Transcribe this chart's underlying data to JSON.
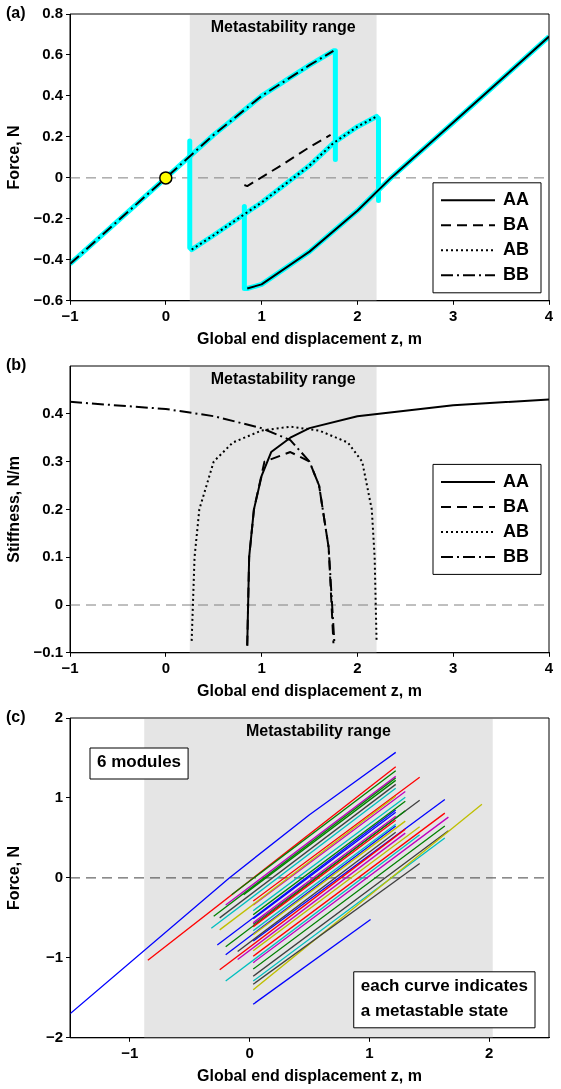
{
  "chart_data": [
    {
      "type": "line",
      "xlabel": "Global end displacement z, m",
      "ylabel": "Force, N",
      "annotations": [
        "(a)"
      ],
      "xlim": [
        -1,
        4
      ],
      "xticks": [
        -1,
        0,
        1,
        2,
        3,
        4
      ],
      "ylim": [
        -0.6,
        0.8
      ],
      "yticks": [
        -0.6,
        -0.4,
        -0.2,
        0,
        0.2,
        0.4,
        0.6,
        0.8
      ],
      "grid": false,
      "legend": "bottom right",
      "marker": "none",
      "bands": [
        {
          "axis": "x",
          "from": 0.25,
          "to": 2.2,
          "label": "Metastability range",
          "color": "#e5e5e5"
        }
      ],
      "ref_lines": [
        {
          "axis": "y",
          "value": 0,
          "color": "#808080",
          "line_style": "dashed"
        }
      ],
      "series": [
        {
          "color": "#00ffff",
          "x": [
            -1,
            0,
            0.5,
            1,
            1.5,
            1.75,
            1.77,
            1.77
          ],
          "values": [
            -0.42,
            0,
            0.21,
            0.4,
            0.55,
            0.62,
            0.62,
            0.09
          ]
        },
        {
          "color": "#00ffff",
          "x": [
            0.25,
            0.25,
            0.27,
            0.5,
            1,
            1.5,
            1.75,
            2,
            2.2,
            2.22,
            2.22
          ],
          "values": [
            0.18,
            -0.34,
            -0.35,
            -0.28,
            -0.12,
            0.06,
            0.17,
            0.25,
            0.3,
            0.29,
            -0.11
          ]
        },
        {
          "color": "#00ffff",
          "x": [
            0.82,
            0.82,
            0.85,
            1,
            1.5,
            2,
            2.35,
            3,
            4
          ],
          "values": [
            -0.14,
            -0.54,
            -0.54,
            -0.52,
            -0.36,
            -0.16,
            0,
            0.27,
            0.69
          ]
        },
        {
          "name": "AA",
          "color": "#000000",
          "line_style": "solid",
          "x": [
            0.85,
            1,
            1.5,
            2,
            2.35,
            3,
            4
          ],
          "values": [
            -0.54,
            -0.52,
            -0.36,
            -0.16,
            0,
            0.27,
            0.69
          ]
        },
        {
          "name": "BA",
          "color": "#000000",
          "line_style": "dashed",
          "x": [
            0.82,
            0.85,
            1.2,
            1.5,
            1.72
          ],
          "values": [
            -0.035,
            -0.04,
            0.06,
            0.15,
            0.21
          ]
        },
        {
          "name": "AB",
          "color": "#000000",
          "line_style": "dotted",
          "x": [
            0.27,
            0.5,
            1,
            1.5,
            1.75,
            2,
            2.2
          ],
          "values": [
            -0.35,
            -0.28,
            -0.12,
            0.06,
            0.17,
            0.25,
            0.3
          ]
        },
        {
          "name": "BB",
          "color": "#000000",
          "line_style": "dashdot",
          "x": [
            -1,
            0,
            0.5,
            1,
            1.5,
            1.75
          ],
          "values": [
            -0.42,
            0,
            0.21,
            0.4,
            0.55,
            0.62
          ]
        },
        {
          "type": "scatter",
          "color": "#ffff00",
          "marker": "circle",
          "x": [
            0
          ],
          "values": [
            0
          ]
        }
      ]
    },
    {
      "type": "line",
      "xlabel": "Global end displacement z, m",
      "ylabel": "Stiffness, N/m",
      "annotations": [
        "(b)"
      ],
      "xlim": [
        -1,
        4
      ],
      "xticks": [
        -1,
        0,
        1,
        2,
        3,
        4
      ],
      "ylim": [
        -0.1,
        0.5
      ],
      "yticks": [
        -0.1,
        0,
        0.1,
        0.2,
        0.3,
        0.4
      ],
      "grid": false,
      "legend": "right",
      "marker": "none",
      "bands": [
        {
          "axis": "x",
          "from": 0.25,
          "to": 2.2,
          "label": "Metastability range",
          "color": "#e5e5e5"
        }
      ],
      "ref_lines": [
        {
          "axis": "y",
          "value": 0,
          "color": "#808080",
          "line_style": "dashed"
        }
      ],
      "series": [
        {
          "name": "AA",
          "color": "#000000",
          "line_style": "solid",
          "x": [
            0.85,
            0.87,
            0.92,
            1,
            1.1,
            1.3,
            1.5,
            2,
            3,
            4
          ],
          "values": [
            -0.085,
            0.1,
            0.2,
            0.27,
            0.32,
            0.35,
            0.37,
            0.395,
            0.418,
            0.43
          ]
        },
        {
          "name": "BA",
          "color": "#000000",
          "line_style": "dashed",
          "x": [
            0.85,
            0.87,
            0.92,
            1.03,
            1.3,
            1.5,
            1.6,
            1.7,
            1.75
          ],
          "values": [
            -0.085,
            0.1,
            0.2,
            0.3,
            0.32,
            0.3,
            0.25,
            0.12,
            -0.08
          ]
        },
        {
          "name": "AB",
          "color": "#000000",
          "line_style": "dotted",
          "x": [
            0.27,
            0.3,
            0.35,
            0.5,
            0.7,
            1,
            1.3,
            1.6,
            1.9,
            2.05,
            2.15,
            2.18,
            2.2
          ],
          "values": [
            -0.075,
            0.1,
            0.2,
            0.3,
            0.34,
            0.365,
            0.373,
            0.365,
            0.34,
            0.3,
            0.2,
            0.1,
            -0.075
          ]
        },
        {
          "name": "BB",
          "color": "#000000",
          "line_style": "dashdot",
          "x": [
            -1,
            0,
            0.5,
            1,
            1.3,
            1.5,
            1.6,
            1.7,
            1.76
          ],
          "values": [
            0.425,
            0.41,
            0.395,
            0.37,
            0.345,
            0.3,
            0.25,
            0.12,
            -0.08
          ]
        }
      ]
    },
    {
      "type": "line",
      "xlabel": "Global end displacement z, m",
      "ylabel": "Force, N",
      "annotations": [
        "(c)",
        "6 modules",
        "each curve indicates\na metastable state"
      ],
      "xlim": [
        -1.5,
        2.5
      ],
      "xticks": [
        -1,
        0,
        1,
        2
      ],
      "ylim": [
        -2,
        2
      ],
      "yticks": [
        -2,
        -1,
        0,
        1,
        2
      ],
      "grid": false,
      "marker": "none",
      "bands": [
        {
          "axis": "x",
          "from": -0.88,
          "to": 2.03,
          "label": "Metastability range",
          "color": "#e5e5e5"
        }
      ],
      "ref_lines": [
        {
          "axis": "y",
          "value": 0,
          "color": "#404040",
          "line_style": "dashed"
        }
      ],
      "series": [
        {
          "color": "#0000ff",
          "x": [
            -1.5,
            -0.17,
            0.5,
            1.22
          ],
          "values": [
            -1.7,
            0,
            0.79,
            1.57
          ]
        },
        {
          "color": "#ff0000",
          "x": [
            -0.85,
            1.22
          ],
          "values": [
            -1.03,
            1.39
          ]
        },
        {
          "color": "#008000",
          "x": [
            -0.15,
            1.22
          ],
          "values": [
            -0.21,
            1.34
          ]
        },
        {
          "color": "#bf00bf",
          "x": [
            -0.2,
            1.22
          ],
          "values": [
            -0.34,
            1.27
          ]
        },
        {
          "color": "#008000",
          "x": [
            -0.05,
            1.22
          ],
          "values": [
            -0.21,
            1.22
          ]
        },
        {
          "color": "#ff0000",
          "x": [
            0.03,
            1.42
          ],
          "values": [
            -0.29,
            1.26
          ]
        },
        {
          "color": "#bf00bf",
          "x": [
            0.03,
            1.3
          ],
          "values": [
            -0.34,
            1.08
          ]
        },
        {
          "color": "#00bfbf",
          "x": [
            0.03,
            1.3
          ],
          "values": [
            -0.41,
            1.01
          ]
        },
        {
          "color": "#404040",
          "x": [
            0.03,
            1.42
          ],
          "values": [
            -0.58,
            0.97
          ]
        },
        {
          "color": "#0000ff",
          "x": [
            0.03,
            1.63
          ],
          "values": [
            -0.79,
            0.98
          ]
        },
        {
          "color": "#ff0000",
          "x": [
            0.03,
            1.63
          ],
          "values": [
            -0.98,
            0.81
          ]
        },
        {
          "color": "#bf00bf",
          "x": [
            0.03,
            1.66
          ],
          "values": [
            -1.06,
            0.76
          ]
        },
        {
          "color": "#008000",
          "x": [
            0.03,
            1.63
          ],
          "values": [
            -1.14,
            0.65
          ]
        },
        {
          "color": "#404040",
          "x": [
            0.03,
            1.66
          ],
          "values": [
            -1.23,
            0.59
          ]
        },
        {
          "color": "#00bfbf",
          "x": [
            0.03,
            1.63
          ],
          "values": [
            -1.29,
            0.5
          ]
        },
        {
          "color": "#bfbf00",
          "x": [
            0.03,
            1.94
          ],
          "values": [
            -1.4,
            0.92
          ]
        },
        {
          "color": "#404040",
          "x": [
            0.03,
            1.42
          ],
          "values": [
            -1.33,
            0.18
          ]
        },
        {
          "color": "#0000ff",
          "x": [
            0.03,
            1.01
          ],
          "values": [
            -1.58,
            -0.52
          ]
        },
        {
          "color": "#008000",
          "x": [
            -0.3,
            1.22
          ],
          "values": [
            -0.48,
            1.25
          ]
        },
        {
          "color": "#404040",
          "x": [
            -0.25,
            1.22
          ],
          "values": [
            -0.5,
            1.17
          ]
        },
        {
          "color": "#00bfbf",
          "x": [
            -0.32,
            1.22
          ],
          "values": [
            -0.63,
            1.12
          ]
        },
        {
          "color": "#bfbf00",
          "x": [
            -0.25,
            1.22
          ],
          "values": [
            -0.65,
            1.02
          ]
        },
        {
          "color": "#0000ff",
          "x": [
            -0.27,
            1.22
          ],
          "values": [
            -0.84,
            0.85
          ]
        },
        {
          "color": "#0000ff",
          "x": [
            -0.2,
            1.22
          ],
          "values": [
            -0.96,
            0.65
          ]
        },
        {
          "color": "#008000",
          "x": [
            -0.2,
            1.3
          ],
          "values": [
            -0.86,
            0.84
          ]
        },
        {
          "color": "#ff0000",
          "x": [
            -0.25,
            1.3
          ],
          "values": [
            -1.15,
            0.61
          ]
        },
        {
          "color": "#00bfbf",
          "x": [
            -0.2,
            1.42
          ],
          "values": [
            -1.29,
            0.54
          ]
        },
        {
          "color": "#404040",
          "x": [
            -0.1,
            1.22
          ],
          "values": [
            -0.92,
            0.57
          ]
        },
        {
          "color": "#bf00bf",
          "x": [
            -0.1,
            1.3
          ],
          "values": [
            -1.02,
            0.56
          ]
        },
        {
          "color": "#bfbf00",
          "x": [
            0.03,
            1.42
          ],
          "values": [
            -0.91,
            0.64
          ]
        },
        {
          "color": "#0000ff",
          "x": [
            0.03,
            1.22
          ],
          "values": [
            -0.51,
            0.82
          ]
        },
        {
          "color": "#00bfbf",
          "x": [
            0.03,
            1.22
          ],
          "values": [
            -0.66,
            0.67
          ]
        },
        {
          "color": "#008000",
          "x": [
            0.03,
            1.3
          ],
          "values": [
            -0.46,
            0.96
          ]
        },
        {
          "color": "#ff0000",
          "x": [
            0.03,
            1.22
          ],
          "values": [
            -0.61,
            0.72
          ]
        },
        {
          "color": "#bfbf00",
          "x": [
            0.03,
            1.3
          ],
          "values": [
            -0.71,
            0.71
          ]
        },
        {
          "color": "#bf00bf",
          "x": [
            0.03,
            1.22
          ],
          "values": [
            -0.56,
            0.77
          ]
        }
      ]
    }
  ]
}
